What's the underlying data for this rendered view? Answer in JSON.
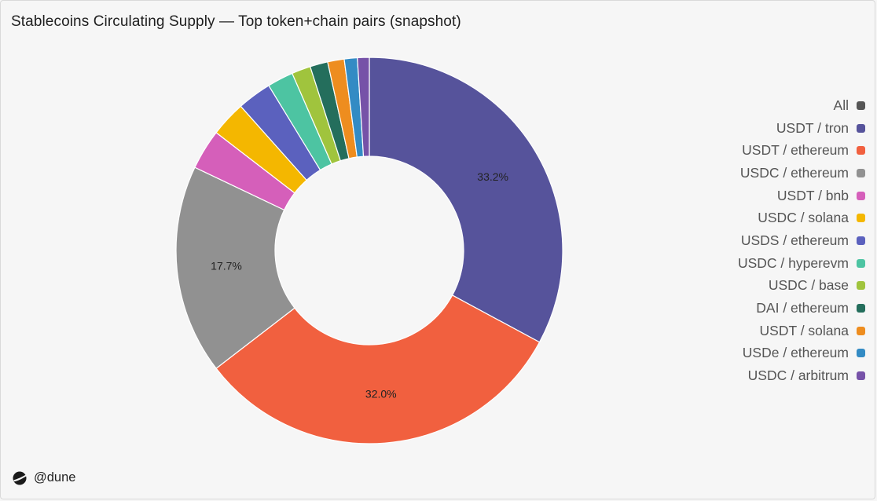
{
  "page": {
    "title": "Stablecoins Circulating Supply — Top token+chain pairs (snapshot)",
    "brand": "@dune"
  },
  "chart_data": {
    "type": "pie",
    "variant": "donut",
    "title": "Stablecoins Circulating Supply — Top token+chain pairs (snapshot)",
    "legend_position": "right",
    "legend_extra": [
      {
        "name": "All",
        "color": "#555555"
      }
    ],
    "slices": [
      {
        "name": "USDT / tron",
        "value": 33.2,
        "color": "#56539b",
        "label": "33.2%"
      },
      {
        "name": "USDT / ethereum",
        "value": 32.0,
        "color": "#f1603f",
        "label": "32.0%"
      },
      {
        "name": "USDC / ethereum",
        "value": 17.7,
        "color": "#919191",
        "label": "17.7%"
      },
      {
        "name": "USDT / bnb",
        "value": 3.4,
        "color": "#d55fba",
        "label": ""
      },
      {
        "name": "USDC / solana",
        "value": 3.0,
        "color": "#f4b700",
        "label": ""
      },
      {
        "name": "USDS / ethereum",
        "value": 2.9,
        "color": "#5b61be",
        "label": ""
      },
      {
        "name": "USDC / hyperevm",
        "value": 2.2,
        "color": "#4dc4a2",
        "label": ""
      },
      {
        "name": "USDC / base",
        "value": 1.6,
        "color": "#a0c43d",
        "label": ""
      },
      {
        "name": "DAI / ethereum",
        "value": 1.5,
        "color": "#246e5c",
        "label": ""
      },
      {
        "name": "USDT / solana",
        "value": 1.4,
        "color": "#ee8d1f",
        "label": ""
      },
      {
        "name": "USDe / ethereum",
        "value": 1.1,
        "color": "#338bc4",
        "label": ""
      },
      {
        "name": "USDC / arbitrum",
        "value": 1.0,
        "color": "#7652a8",
        "label": ""
      }
    ]
  }
}
